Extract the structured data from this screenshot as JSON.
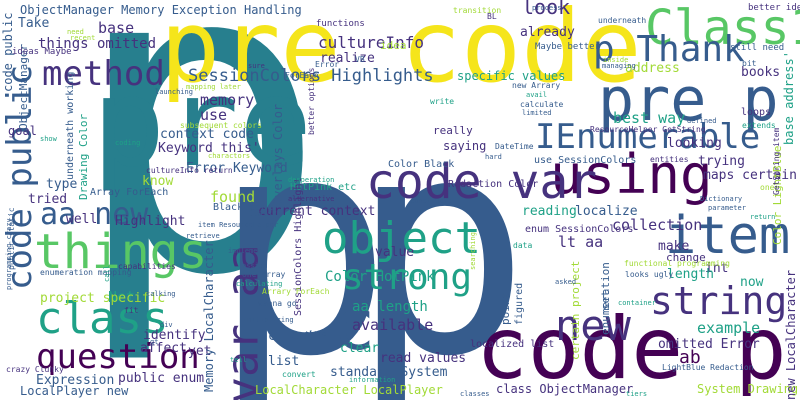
{
  "palette": {
    "yellow": "#f5e51b",
    "ylgreen": "#a2da37",
    "green": "#58c765",
    "teal": "#1fa187",
    "tealblue": "#277f8e",
    "blue": "#365c8d",
    "indigo": "#46327e",
    "purple": "#440154"
  },
  "words": [
    {
      "text": "p",
      "color": "tealblue"
    },
    {
      "text": "pre",
      "color": "tealblue"
    },
    {
      "text": "p",
      "color": "blue"
    },
    {
      "text": "p",
      "color": "blue"
    },
    {
      "text": "pre code",
      "color": "yellow"
    },
    {
      "text": "code pre",
      "color": "purple"
    },
    {
      "text": "pre p",
      "color": "blue"
    },
    {
      "text": "Class1",
      "color": "green"
    },
    {
      "text": "p Thank",
      "color": "blue"
    },
    {
      "text": "method",
      "color": "indigo"
    },
    {
      "text": "using",
      "color": "purple"
    },
    {
      "text": "code var",
      "color": "indigo"
    },
    {
      "text": "IEnumerable",
      "color": "blue"
    },
    {
      "text": "item",
      "color": "blue"
    },
    {
      "text": "object",
      "color": "teal"
    },
    {
      "text": "things",
      "color": "green"
    },
    {
      "text": "aa new",
      "color": "blue"
    },
    {
      "text": "class",
      "color": "teal"
    },
    {
      "text": "question",
      "color": "purple"
    },
    {
      "text": "strong",
      "color": "teal"
    },
    {
      "text": "string",
      "color": "indigo"
    },
    {
      "text": "new",
      "color": "indigo"
    },
    {
      "text": "var aa",
      "color": "indigo"
    },
    {
      "text": "code public",
      "color": "blue"
    },
    {
      "text": "c",
      "color": "blue"
    },
    {
      "text": "SessionColors Highlights",
      "color": "blue"
    },
    {
      "text": "ObjectManager Memory Exception Handling",
      "color": "blue"
    },
    {
      "text": "cultureInfo",
      "color": "indigo"
    },
    {
      "text": "look",
      "color": "indigo"
    },
    {
      "text": "Take",
      "color": "blue"
    },
    {
      "text": "base",
      "color": "indigo"
    },
    {
      "text": "things omitted",
      "color": "indigo"
    },
    {
      "text": "realize",
      "color": "indigo"
    },
    {
      "text": "idea",
      "color": "ylgreen"
    },
    {
      "text": "already",
      "color": "indigo"
    },
    {
      "text": "memory",
      "color": "indigo"
    },
    {
      "text": "use",
      "color": "indigo"
    },
    {
      "text": "context code",
      "color": "blue"
    },
    {
      "text": "Keyword this'",
      "color": "indigo"
    },
    {
      "text": "Error Keyword",
      "color": "blue"
    },
    {
      "text": "know",
      "color": "ylgreen"
    },
    {
      "text": "type",
      "color": "blue"
    },
    {
      "text": "tried",
      "color": "indigo"
    },
    {
      "text": "well",
      "color": "indigo"
    },
    {
      "text": "Highlight",
      "color": "indigo"
    },
    {
      "text": "found",
      "color": "ylgreen"
    },
    {
      "text": "current context",
      "color": "indigo"
    },
    {
      "text": "Color HotPink",
      "color": "teal"
    },
    {
      "text": "aa length",
      "color": "teal"
    },
    {
      "text": "value",
      "color": "indigo"
    },
    {
      "text": "available",
      "color": "indigo"
    },
    {
      "text": "read values",
      "color": "indigo"
    },
    {
      "text": "standard System",
      "color": "blue"
    },
    {
      "text": "list",
      "color": "blue"
    },
    {
      "text": "client",
      "color": "blue"
    },
    {
      "text": "clear",
      "color": "teal"
    },
    {
      "text": "Expression",
      "color": "blue"
    },
    {
      "text": "public enum",
      "color": "indigo"
    },
    {
      "text": "LocalPlayer new",
      "color": "blue"
    },
    {
      "text": "LocalCharacter LocalPlayer",
      "color": "ylgreen"
    },
    {
      "text": "class ObjectManager",
      "color": "indigo"
    },
    {
      "text": "System Drawing",
      "color": "ylgreen"
    },
    {
      "text": "example",
      "color": "teal"
    },
    {
      "text": "omitted Error",
      "color": "indigo"
    },
    {
      "text": "collection",
      "color": "indigo"
    },
    {
      "text": "lt aa",
      "color": "indigo"
    },
    {
      "text": "make",
      "color": "indigo"
    },
    {
      "text": "int",
      "color": "indigo"
    },
    {
      "text": "now",
      "color": "teal"
    },
    {
      "text": "length",
      "color": "teal"
    },
    {
      "text": "localize",
      "color": "blue"
    },
    {
      "text": "reading",
      "color": "teal"
    },
    {
      "text": "specific values",
      "color": "teal"
    },
    {
      "text": "address",
      "color": "ylgreen"
    },
    {
      "text": "best way",
      "color": "teal"
    },
    {
      "text": "looking",
      "color": "indigo"
    },
    {
      "text": "trying",
      "color": "indigo"
    },
    {
      "text": "maps certain",
      "color": "indigo"
    },
    {
      "text": "books",
      "color": "indigo"
    },
    {
      "text": "ab",
      "color": "purple"
    },
    {
      "text": "Net",
      "color": "teal"
    },
    {
      "text": "identify",
      "color": "indigo"
    },
    {
      "text": "affect",
      "color": "indigo"
    },
    {
      "text": "yet",
      "color": "indigo"
    },
    {
      "text": "project specific",
      "color": "ylgreen"
    },
    {
      "text": "goal",
      "color": "indigo"
    },
    {
      "text": "Overlays Color",
      "color": "blue"
    },
    {
      "text": "Redaction Color",
      "color": "indigo"
    },
    {
      "text": "Color Black",
      "color": "blue"
    },
    {
      "text": "localized list",
      "color": "indigo"
    },
    {
      "text": "enum SessionColors",
      "color": "indigo"
    },
    {
      "text": "HotPink etc",
      "color": "teal"
    },
    {
      "text": "ObjectManager",
      "color": "blue"
    },
    {
      "text": "Array ForEach",
      "color": "blue"
    },
    {
      "text": "Black code",
      "color": "blue"
    },
    {
      "text": "use SessionColors",
      "color": "blue"
    },
    {
      "text": "saying",
      "color": "indigo"
    },
    {
      "text": "really",
      "color": "indigo"
    },
    {
      "text": "Color LightBlue",
      "color": "ylgreen"
    },
    {
      "text": "base address'",
      "color": "teal"
    },
    {
      "text": "new LocalCharacter",
      "color": "indigo"
    },
    {
      "text": "Memory LocalCharacter",
      "color": "blue"
    },
    {
      "text": "Drawing Color",
      "color": "teal"
    },
    {
      "text": "code public",
      "color": "blue"
    },
    {
      "text": "underneath working",
      "color": "blue"
    },
    {
      "text": "SessionColors Highlight",
      "color": "indigo"
    },
    {
      "text": "certain project",
      "color": "ylgreen"
    },
    {
      "text": "enumeration",
      "color": "blue"
    },
    {
      "text": "point",
      "color": "blue"
    },
    {
      "text": "change",
      "color": "indigo"
    },
    {
      "text": "set",
      "color": "blue"
    },
    {
      "text": "figured",
      "color": "blue"
    },
    {
      "text": "Arrary ForEach",
      "color": "ylgreen"
    },
    {
      "text": "Class2",
      "color": "blue"
    },
    {
      "text": "Error",
      "color": "blue"
    },
    {
      "text": "ForEach",
      "color": "blue"
    },
    {
      "text": "VB",
      "color": "blue"
    },
    {
      "text": "need",
      "color": "ylgreen"
    },
    {
      "text": "recent",
      "color": "ylgreen"
    },
    {
      "text": "ideas Maybe",
      "color": "indigo"
    },
    {
      "text": "functions",
      "color": "indigo"
    },
    {
      "text": "transition",
      "color": "ylgreen"
    },
    {
      "text": "BL",
      "color": "indigo"
    },
    {
      "text": "process",
      "color": "blue"
    },
    {
      "text": "better idea",
      "color": "indigo"
    },
    {
      "text": "underneath",
      "color": "blue"
    },
    {
      "text": "inside",
      "color": "ylgreen"
    },
    {
      "text": "Maybe better",
      "color": "blue"
    },
    {
      "text": "still need",
      "color": "blue"
    },
    {
      "text": "managing",
      "color": "blue"
    },
    {
      "text": "new Arrary",
      "color": "blue"
    },
    {
      "text": "avail",
      "color": "teal"
    },
    {
      "text": "calculate",
      "color": "blue"
    },
    {
      "text": "limited",
      "color": "blue"
    },
    {
      "text": "loops",
      "color": "indigo"
    },
    {
      "text": "extends",
      "color": "teal"
    },
    {
      "text": "defined",
      "color": "blue"
    },
    {
      "text": "ResourceHelper GetString",
      "color": "indigo"
    },
    {
      "text": "GetString item",
      "color": "indigo"
    },
    {
      "text": "entities",
      "color": "indigo"
    },
    {
      "text": "DateTime",
      "color": "blue"
    },
    {
      "text": "hard",
      "color": "blue"
    },
    {
      "text": "mapping later",
      "color": "ylgreen"
    },
    {
      "text": "launching",
      "color": "blue"
    },
    {
      "text": "subsequent colors",
      "color": "ylgreen"
    },
    {
      "text": "coding",
      "color": "teal"
    },
    {
      "text": "show",
      "color": "teal"
    },
    {
      "text": "charactors",
      "color": "ylgreen"
    },
    {
      "text": "cultureInfo return",
      "color": "indigo"
    },
    {
      "text": "capabilities",
      "color": "indigo"
    },
    {
      "text": "retrieve",
      "color": "blue"
    },
    {
      "text": "talking",
      "color": "blue"
    },
    {
      "text": "enumeration mapping",
      "color": "blue"
    },
    {
      "text": "item ResourceHelper",
      "color": "blue"
    },
    {
      "text": "alternative",
      "color": "indigo"
    },
    {
      "text": "desperation",
      "color": "teal"
    },
    {
      "text": "implement",
      "color": "blue"
    },
    {
      "text": "assign",
      "color": "blue"
    },
    {
      "text": "one Array",
      "color": "blue"
    },
    {
      "text": "calculating",
      "color": "teal"
    },
    {
      "text": "initializing",
      "color": "blue"
    },
    {
      "text": "wanna go",
      "color": "blue"
    },
    {
      "text": "convert",
      "color": "teal"
    },
    {
      "text": "information",
      "color": "teal"
    },
    {
      "text": "functional programming",
      "color": "ylgreen"
    },
    {
      "text": "looks ugly",
      "color": "blue"
    },
    {
      "text": "LightBlue Redaction",
      "color": "blue"
    },
    {
      "text": "container",
      "color": "teal"
    },
    {
      "text": "crazy Clunky",
      "color": "indigo"
    },
    {
      "text": "programming crazy",
      "color": "blue"
    },
    {
      "text": "public static",
      "color": "blue"
    },
    {
      "text": "Dictionary",
      "color": "blue"
    },
    {
      "text": "parameter",
      "color": "blue"
    },
    {
      "text": "asked",
      "color": "blue"
    },
    {
      "text": "tiers",
      "color": "teal"
    },
    {
      "text": "searching",
      "color": "ylgreen"
    },
    {
      "text": "better options",
      "color": "indigo"
    },
    {
      "text": "write",
      "color": "teal"
    },
    {
      "text": "one",
      "color": "ylgreen"
    },
    {
      "text": "sure",
      "color": "indigo"
    },
    {
      "text": "bit",
      "color": "blue"
    },
    {
      "text": "fit",
      "color": "indigo"
    },
    {
      "text": "gt",
      "color": "blue"
    },
    {
      "text": "call",
      "color": "teal"
    },
    {
      "text": "tell",
      "color": "teal"
    },
    {
      "text": "title",
      "color": "blue"
    },
    {
      "text": "classes",
      "color": "blue"
    },
    {
      "text": "data",
      "color": "teal"
    },
    {
      "text": "return",
      "color": "teal"
    },
    {
      "text": "div",
      "color": "blue"
    },
    {
      "text": "constructs",
      "color": "blue"
    },
    {
      "text": "Arrary",
      "color": "blue"
    }
  ]
}
